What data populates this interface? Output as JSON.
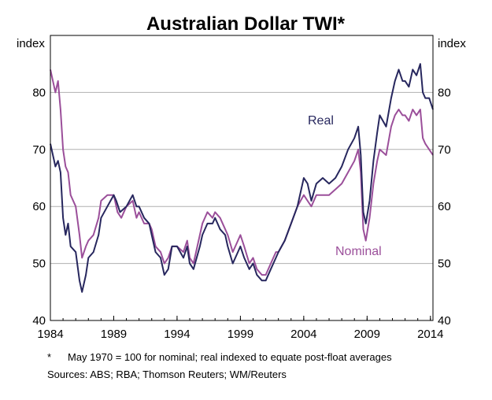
{
  "chart_data": {
    "type": "line",
    "title": "Australian Dollar TWI*",
    "ylabel_left": "index",
    "ylabel_right": "index",
    "ylim": [
      40,
      90
    ],
    "xlim": [
      1984.0,
      2014.2
    ],
    "yticks": [
      "40",
      "50",
      "60",
      "70",
      "80"
    ],
    "xticks": [
      {
        "x": 1984,
        "label": "1984"
      },
      {
        "x": 1989,
        "label": "1989"
      },
      {
        "x": 1994,
        "label": "1994"
      },
      {
        "x": 1999,
        "label": "1999"
      },
      {
        "x": 2004,
        "label": "2004"
      },
      {
        "x": 2009,
        "label": "2009"
      },
      {
        "x": 2014,
        "label": "2014"
      }
    ],
    "series": [
      {
        "name": "Real",
        "color": "#27275e",
        "points": [
          [
            1984.0,
            71
          ],
          [
            1984.2,
            69
          ],
          [
            1984.4,
            67
          ],
          [
            1984.6,
            68
          ],
          [
            1984.8,
            66
          ],
          [
            1985.0,
            58
          ],
          [
            1985.2,
            55
          ],
          [
            1985.4,
            57
          ],
          [
            1985.6,
            53
          ],
          [
            1986.0,
            52
          ],
          [
            1986.3,
            47
          ],
          [
            1986.5,
            45
          ],
          [
            1986.8,
            48
          ],
          [
            1987.0,
            51
          ],
          [
            1987.4,
            52
          ],
          [
            1987.8,
            55
          ],
          [
            1988.0,
            58
          ],
          [
            1988.5,
            60
          ],
          [
            1989.0,
            62
          ],
          [
            1989.2,
            61
          ],
          [
            1989.5,
            59
          ],
          [
            1990.0,
            60
          ],
          [
            1990.5,
            62
          ],
          [
            1990.8,
            60
          ],
          [
            1991.0,
            60
          ],
          [
            1991.4,
            58
          ],
          [
            1991.8,
            57
          ],
          [
            1992.0,
            55
          ],
          [
            1992.3,
            52
          ],
          [
            1992.7,
            51
          ],
          [
            1993.0,
            48
          ],
          [
            1993.3,
            49
          ],
          [
            1993.6,
            53
          ],
          [
            1994.0,
            53
          ],
          [
            1994.5,
            51
          ],
          [
            1994.8,
            53
          ],
          [
            1995.0,
            50
          ],
          [
            1995.3,
            49
          ],
          [
            1995.8,
            53
          ],
          [
            1996.0,
            55
          ],
          [
            1996.4,
            57
          ],
          [
            1996.8,
            57
          ],
          [
            1997.0,
            58
          ],
          [
            1997.4,
            56
          ],
          [
            1997.8,
            55
          ],
          [
            1998.0,
            53
          ],
          [
            1998.4,
            50
          ],
          [
            1998.8,
            52
          ],
          [
            1999.0,
            53
          ],
          [
            1999.3,
            51
          ],
          [
            1999.7,
            49
          ],
          [
            2000.0,
            50
          ],
          [
            2000.3,
            48
          ],
          [
            2000.7,
            47
          ],
          [
            2001.0,
            47
          ],
          [
            2001.4,
            49
          ],
          [
            2001.8,
            51
          ],
          [
            2002.0,
            52
          ],
          [
            2002.5,
            54
          ],
          [
            2003.0,
            57
          ],
          [
            2003.5,
            60
          ],
          [
            2004.0,
            65
          ],
          [
            2004.3,
            64
          ],
          [
            2004.6,
            61
          ],
          [
            2005.0,
            64
          ],
          [
            2005.5,
            65
          ],
          [
            2006.0,
            64
          ],
          [
            2006.5,
            65
          ],
          [
            2007.0,
            67
          ],
          [
            2007.5,
            70
          ],
          [
            2008.0,
            72
          ],
          [
            2008.3,
            74
          ],
          [
            2008.5,
            69
          ],
          [
            2008.7,
            59
          ],
          [
            2008.9,
            57
          ],
          [
            2009.2,
            61
          ],
          [
            2009.5,
            68
          ],
          [
            2009.8,
            73
          ],
          [
            2010.0,
            76
          ],
          [
            2010.5,
            74
          ],
          [
            2010.9,
            79
          ],
          [
            2011.2,
            82
          ],
          [
            2011.5,
            84
          ],
          [
            2011.8,
            82
          ],
          [
            2012.0,
            82
          ],
          [
            2012.3,
            81
          ],
          [
            2012.6,
            84
          ],
          [
            2012.9,
            83
          ],
          [
            2013.2,
            85
          ],
          [
            2013.4,
            80
          ],
          [
            2013.6,
            79
          ],
          [
            2013.9,
            79
          ],
          [
            2014.2,
            77
          ]
        ]
      },
      {
        "name": "Nominal",
        "color": "#9b4f9a",
        "points": [
          [
            1984.0,
            84
          ],
          [
            1984.2,
            82
          ],
          [
            1984.4,
            80
          ],
          [
            1984.6,
            82
          ],
          [
            1984.8,
            77
          ],
          [
            1985.0,
            70
          ],
          [
            1985.2,
            67
          ],
          [
            1985.4,
            66
          ],
          [
            1985.6,
            62
          ],
          [
            1986.0,
            60
          ],
          [
            1986.3,
            55
          ],
          [
            1986.5,
            51
          ],
          [
            1986.8,
            53
          ],
          [
            1987.0,
            54
          ],
          [
            1987.4,
            55
          ],
          [
            1987.8,
            58
          ],
          [
            1988.0,
            61
          ],
          [
            1988.5,
            62
          ],
          [
            1989.0,
            62
          ],
          [
            1989.3,
            59
          ],
          [
            1989.6,
            58
          ],
          [
            1990.0,
            60
          ],
          [
            1990.5,
            61
          ],
          [
            1990.8,
            58
          ],
          [
            1991.0,
            59
          ],
          [
            1991.4,
            57
          ],
          [
            1991.8,
            57
          ],
          [
            1992.0,
            56
          ],
          [
            1992.3,
            53
          ],
          [
            1992.7,
            52
          ],
          [
            1993.0,
            50
          ],
          [
            1993.3,
            51
          ],
          [
            1993.6,
            53
          ],
          [
            1994.0,
            53
          ],
          [
            1994.5,
            52
          ],
          [
            1994.8,
            54
          ],
          [
            1995.0,
            51
          ],
          [
            1995.3,
            50
          ],
          [
            1995.8,
            55
          ],
          [
            1996.0,
            57
          ],
          [
            1996.4,
            59
          ],
          [
            1996.8,
            58
          ],
          [
            1997.0,
            59
          ],
          [
            1997.4,
            58
          ],
          [
            1997.8,
            56
          ],
          [
            1998.0,
            55
          ],
          [
            1998.4,
            52
          ],
          [
            1998.8,
            54
          ],
          [
            1999.0,
            55
          ],
          [
            1999.3,
            53
          ],
          [
            1999.7,
            50
          ],
          [
            2000.0,
            51
          ],
          [
            2000.3,
            49
          ],
          [
            2000.7,
            48
          ],
          [
            2001.0,
            48
          ],
          [
            2001.4,
            50
          ],
          [
            2001.8,
            52
          ],
          [
            2002.0,
            52
          ],
          [
            2002.5,
            54
          ],
          [
            2003.0,
            57
          ],
          [
            2003.5,
            60
          ],
          [
            2004.0,
            62
          ],
          [
            2004.3,
            61
          ],
          [
            2004.6,
            60
          ],
          [
            2005.0,
            62
          ],
          [
            2005.5,
            62
          ],
          [
            2006.0,
            62
          ],
          [
            2006.5,
            63
          ],
          [
            2007.0,
            64
          ],
          [
            2007.5,
            66
          ],
          [
            2008.0,
            68
          ],
          [
            2008.3,
            70
          ],
          [
            2008.5,
            66
          ],
          [
            2008.7,
            56
          ],
          [
            2008.9,
            54
          ],
          [
            2009.2,
            58
          ],
          [
            2009.5,
            64
          ],
          [
            2009.8,
            68
          ],
          [
            2010.0,
            70
          ],
          [
            2010.5,
            69
          ],
          [
            2010.9,
            74
          ],
          [
            2011.2,
            76
          ],
          [
            2011.5,
            77
          ],
          [
            2011.8,
            76
          ],
          [
            2012.0,
            76
          ],
          [
            2012.3,
            75
          ],
          [
            2012.6,
            77
          ],
          [
            2012.9,
            76
          ],
          [
            2013.2,
            77
          ],
          [
            2013.4,
            72
          ],
          [
            2013.6,
            71
          ],
          [
            2013.9,
            70
          ],
          [
            2014.2,
            69
          ]
        ]
      }
    ],
    "annotations": [
      {
        "text": "Real",
        "series": "Real"
      },
      {
        "text": "Nominal",
        "series": "Nominal"
      }
    ]
  },
  "footnote": {
    "star": "*",
    "text": "May 1970 = 100 for nominal; real indexed to equate post-float averages"
  },
  "sources": "Sources:  ABS; RBA; Thomson Reuters; WM/Reuters"
}
